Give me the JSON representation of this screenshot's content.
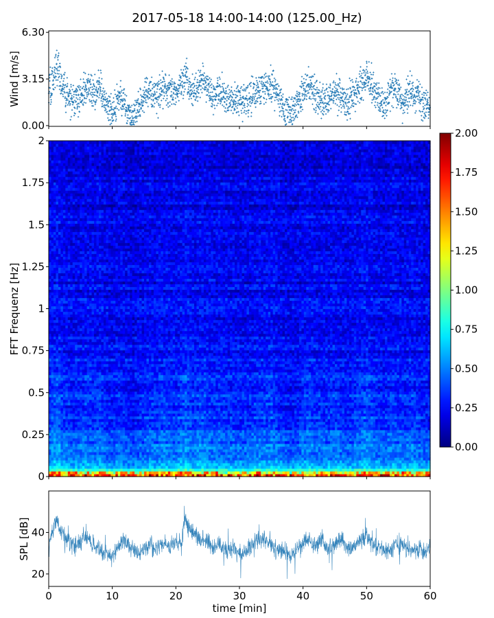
{
  "figure": {
    "title": "2017-05-18 14:00-14:00 (125.00_Hz)"
  },
  "chart_data": [
    {
      "id": "wind",
      "type": "scatter",
      "ylabel": "Wind [m/s]",
      "xlim": [
        0,
        60
      ],
      "ylim": [
        -0.05,
        6.4
      ],
      "yticks": [
        0.0,
        3.15,
        6.3
      ],
      "ytick_labels": [
        "0.00",
        "3.15",
        "6.30"
      ],
      "marker_color": "#1f77b4",
      "sample_profile": [
        [
          0,
          2.3
        ],
        [
          1,
          3.4
        ],
        [
          1.5,
          4.2
        ],
        [
          2,
          2.8
        ],
        [
          3,
          2.0
        ],
        [
          4,
          1.5
        ],
        [
          5,
          2.0
        ],
        [
          6,
          2.6
        ],
        [
          7,
          2.2
        ],
        [
          8,
          2.8
        ],
        [
          9,
          1.4
        ],
        [
          10,
          0.9
        ],
        [
          11,
          2.0
        ],
        [
          12,
          1.3
        ],
        [
          13,
          0.6
        ],
        [
          14,
          1.2
        ],
        [
          15,
          2.0
        ],
        [
          16,
          2.2
        ],
        [
          17,
          2.0
        ],
        [
          18,
          2.6
        ],
        [
          19,
          2.4
        ],
        [
          20,
          2.2
        ],
        [
          21,
          3.0
        ],
        [
          21.5,
          3.8
        ],
        [
          22,
          2.7
        ],
        [
          23,
          2.2
        ],
        [
          24,
          3.2
        ],
        [
          25,
          2.6
        ],
        [
          26,
          2.0
        ],
        [
          27,
          2.4
        ],
        [
          28,
          1.8
        ],
        [
          29,
          1.9
        ],
        [
          30,
          1.6
        ],
        [
          31,
          1.8
        ],
        [
          32,
          2.0
        ],
        [
          33,
          2.6
        ],
        [
          34,
          2.3
        ],
        [
          35,
          2.8
        ],
        [
          36,
          2.2
        ],
        [
          37,
          1.2
        ],
        [
          38,
          0.9
        ],
        [
          39,
          1.2
        ],
        [
          40,
          2.2
        ],
        [
          41,
          2.8
        ],
        [
          42,
          2.0
        ],
        [
          43,
          1.8
        ],
        [
          44,
          2.0
        ],
        [
          45,
          2.4
        ],
        [
          46,
          2.0
        ],
        [
          47,
          1.4
        ],
        [
          48,
          2.0
        ],
        [
          49,
          2.6
        ],
        [
          50,
          3.4
        ],
        [
          51,
          2.6
        ],
        [
          52,
          1.6
        ],
        [
          53,
          1.4
        ],
        [
          54,
          2.6
        ],
        [
          55,
          2.0
        ],
        [
          56,
          1.6
        ],
        [
          57,
          2.4
        ],
        [
          58,
          2.0
        ],
        [
          59,
          1.4
        ],
        [
          60,
          1.2
        ]
      ]
    },
    {
      "id": "spectrogram",
      "type": "heatmap",
      "ylabel": "FFT Frequenz [Hz]",
      "xlim": [
        0,
        60
      ],
      "ylim": [
        0,
        2
      ],
      "yticks": [
        0,
        0.25,
        0.5,
        0.75,
        1,
        1.25,
        1.5,
        1.75,
        2
      ],
      "ytick_labels": [
        "0",
        "0.25",
        "0.5",
        "0.75",
        "1",
        "1.25",
        "1.5",
        "1.75",
        "2"
      ],
      "colormap": "jet",
      "clim": [
        0,
        2
      ],
      "colorbar": {
        "ticks": [
          0.0,
          0.25,
          0.5,
          0.75,
          1.0,
          1.25,
          1.5,
          1.75,
          2.0
        ],
        "tick_labels": [
          "0.00",
          "0.25",
          "0.50",
          "0.75",
          "1.00",
          "1.25",
          "1.50",
          "1.75",
          "2.00"
        ]
      },
      "frequency_profile": [
        [
          0.0,
          1.3
        ],
        [
          0.02,
          0.95
        ],
        [
          0.05,
          0.7
        ],
        [
          0.1,
          0.55
        ],
        [
          0.2,
          0.42
        ],
        [
          0.3,
          0.36
        ],
        [
          0.5,
          0.31
        ],
        [
          0.75,
          0.27
        ],
        [
          1.0,
          0.24
        ],
        [
          1.5,
          0.21
        ],
        [
          2.0,
          0.19
        ]
      ]
    },
    {
      "id": "spl",
      "type": "line",
      "ylabel": "SPL [dB]",
      "xlabel": "time [min]",
      "xlim": [
        0,
        60
      ],
      "ylim": [
        14,
        60
      ],
      "yticks": [
        20,
        40
      ],
      "ytick_labels": [
        "20",
        "40"
      ],
      "xticks": [
        0,
        10,
        20,
        30,
        40,
        50,
        60
      ],
      "xtick_labels": [
        "0",
        "10",
        "20",
        "30",
        "40",
        "50",
        "60"
      ],
      "line_color": "#1f77b4",
      "sample_profile": [
        [
          0,
          32
        ],
        [
          0.5,
          40
        ],
        [
          1.2,
          46
        ],
        [
          2,
          40
        ],
        [
          3,
          36
        ],
        [
          4,
          34
        ],
        [
          5,
          36
        ],
        [
          6,
          38
        ],
        [
          7,
          34
        ],
        [
          8,
          31
        ],
        [
          9,
          30
        ],
        [
          10,
          28
        ],
        [
          11,
          34
        ],
        [
          12,
          36
        ],
        [
          13,
          32
        ],
        [
          14,
          30
        ],
        [
          15,
          32
        ],
        [
          16,
          34
        ],
        [
          17,
          32
        ],
        [
          18,
          35
        ],
        [
          19,
          33
        ],
        [
          20,
          35
        ],
        [
          21,
          36
        ],
        [
          21.5,
          48
        ],
        [
          22,
          42
        ],
        [
          23,
          39
        ],
        [
          24,
          37
        ],
        [
          25,
          36
        ],
        [
          26,
          33
        ],
        [
          27,
          34
        ],
        [
          28,
          31
        ],
        [
          29,
          32
        ],
        [
          30,
          30
        ],
        [
          31,
          31
        ],
        [
          32,
          34
        ],
        [
          33,
          37
        ],
        [
          34,
          36
        ],
        [
          35,
          34
        ],
        [
          36,
          32
        ],
        [
          37,
          31
        ],
        [
          38,
          29
        ],
        [
          39,
          32
        ],
        [
          40,
          35
        ],
        [
          41,
          36
        ],
        [
          42,
          33
        ],
        [
          43,
          36
        ],
        [
          44,
          32
        ],
        [
          45,
          34
        ],
        [
          46,
          37
        ],
        [
          47,
          31
        ],
        [
          48,
          32
        ],
        [
          49,
          36
        ],
        [
          50,
          38
        ],
        [
          51,
          35
        ],
        [
          52,
          33
        ],
        [
          53,
          30
        ],
        [
          54,
          32
        ],
        [
          55,
          35
        ],
        [
          56,
          33
        ],
        [
          57,
          31
        ],
        [
          58,
          32
        ],
        [
          59,
          30
        ],
        [
          60,
          33
        ]
      ]
    }
  ]
}
